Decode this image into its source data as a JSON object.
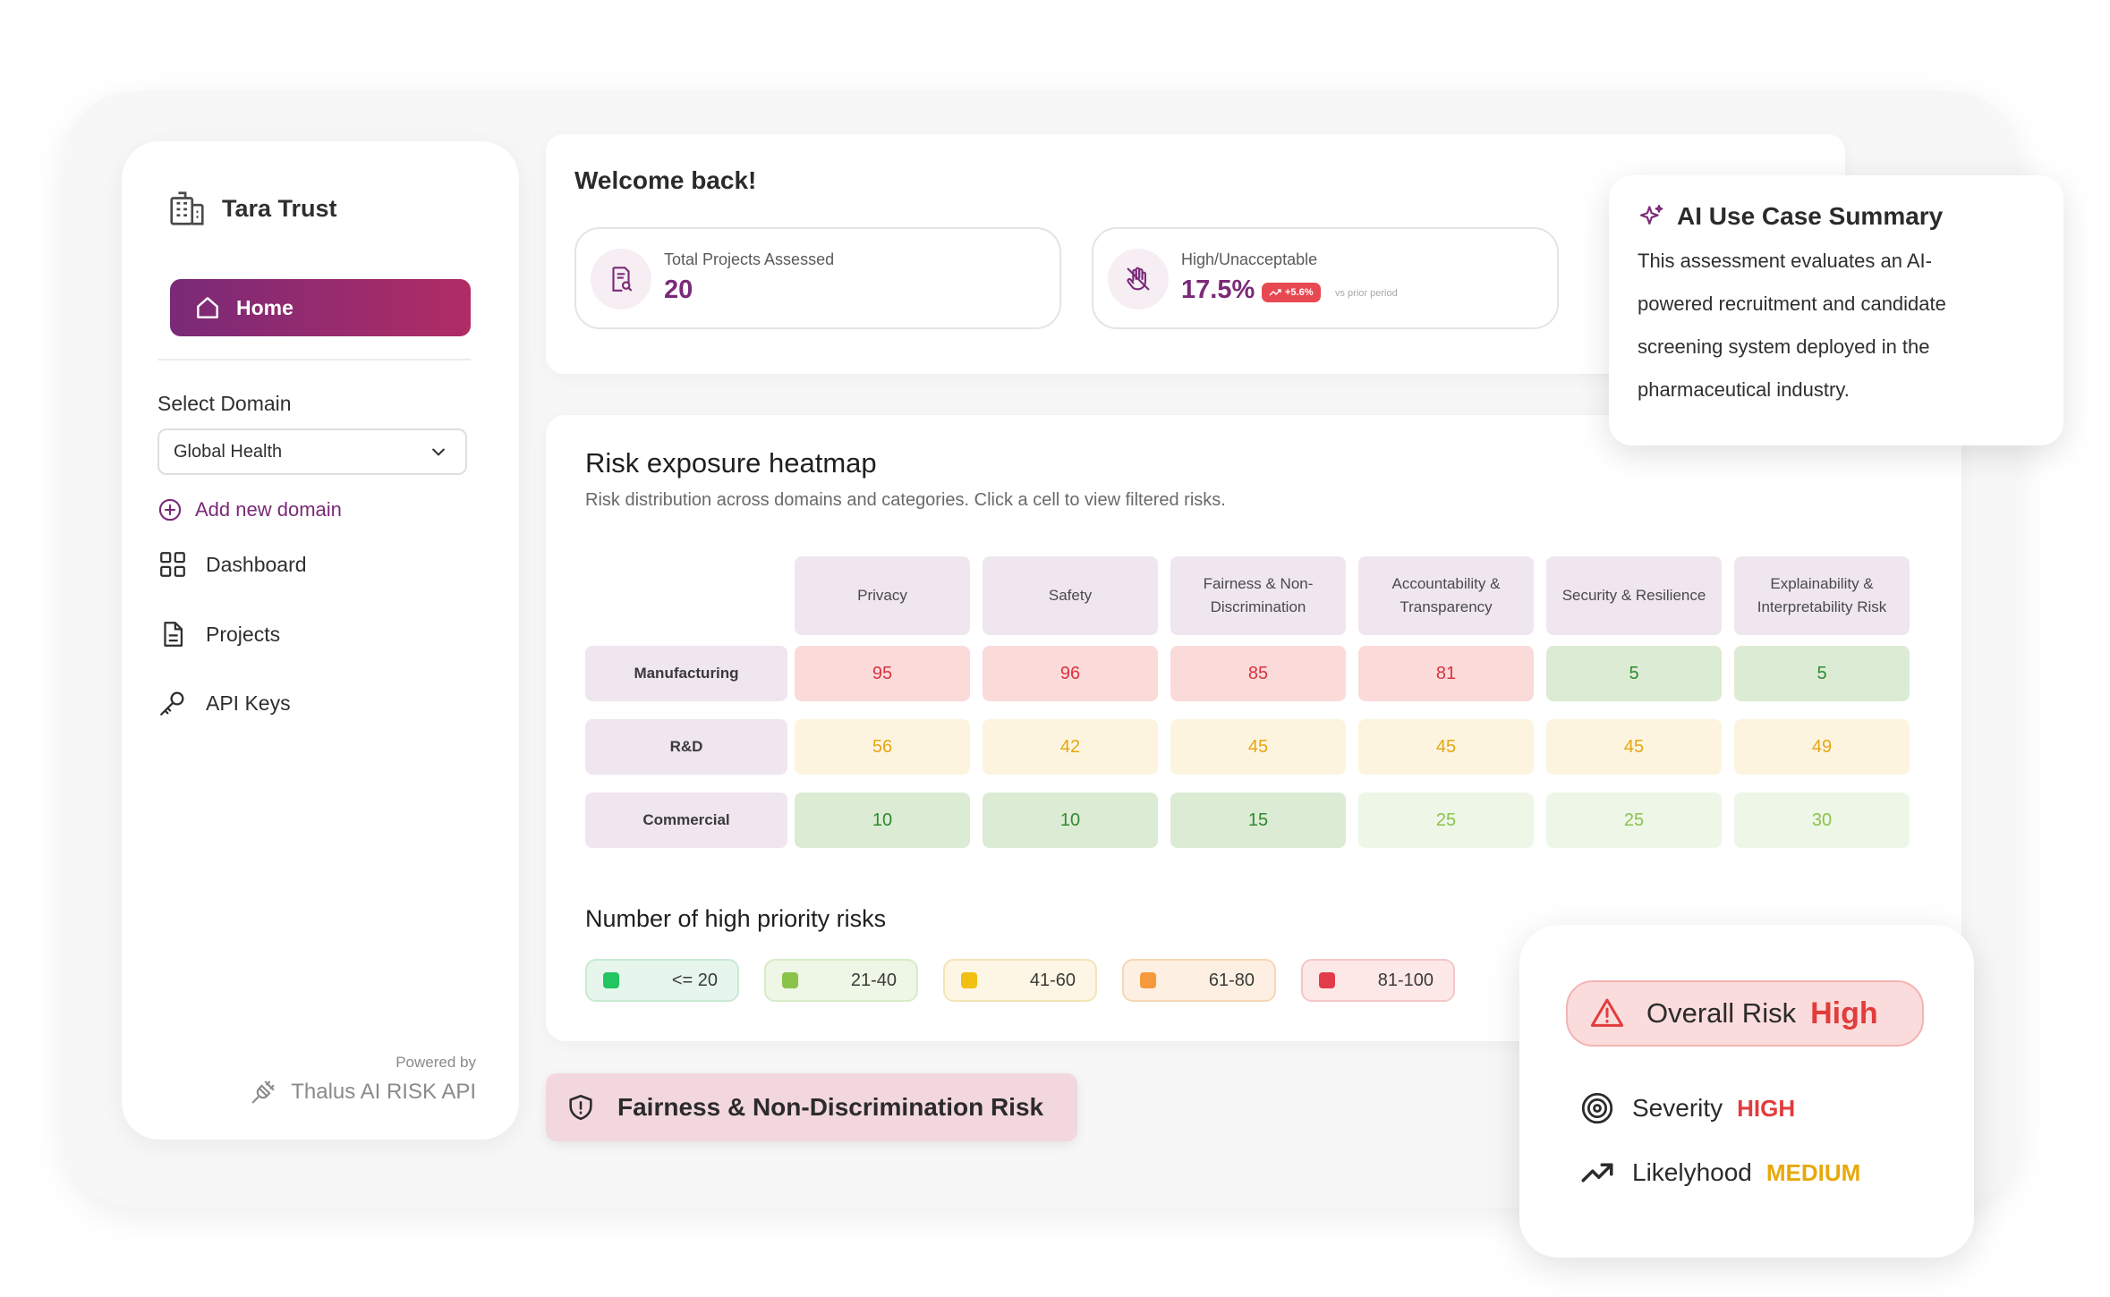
{
  "brand": {
    "name": "Tara Trust"
  },
  "nav": {
    "home": "Home",
    "select_domain_label": "Select Domain",
    "domain_selected": "Global Health",
    "add_domain": "Add new domain",
    "items": [
      "Dashboard",
      "Projects",
      "API Keys"
    ]
  },
  "powered": {
    "label": "Powered by",
    "name": "Thalus AI RISK API"
  },
  "welcome": {
    "title": "Welcome back!",
    "stats": [
      {
        "label": "Total Projects Assessed",
        "value": "20"
      },
      {
        "label": "High/Unacceptable",
        "value": "17.5%",
        "trend": "+5.6%",
        "trend_note": "vs prior period"
      }
    ]
  },
  "heatmap": {
    "title": "Risk exposure heatmap",
    "subtitle": "Risk distribution across domains and categories. Click a cell to view filtered risks.",
    "columns": [
      "Privacy",
      "Safety",
      "Fairness & Non-Discrimination",
      "Accountability & Transparency",
      "Security & Resilience",
      "Explainability & Interpretability Risk"
    ],
    "rows": [
      {
        "label": "Manufacturing",
        "values": [
          "95",
          "96",
          "85",
          "81",
          "5",
          "5"
        ]
      },
      {
        "label": "R&D",
        "values": [
          "56",
          "42",
          "45",
          "45",
          "45",
          "49"
        ]
      },
      {
        "label": "Commercial",
        "values": [
          "10",
          "10",
          "15",
          "25",
          "25",
          "30"
        ]
      }
    ]
  },
  "legend": {
    "title": "Number of high priority risks",
    "items": [
      {
        "label": "<= 20",
        "color": "#22c55e"
      },
      {
        "label": "21-40",
        "color": "#8bc34a"
      },
      {
        "label": "41-60",
        "color": "#f2c011"
      },
      {
        "label": "61-80",
        "color": "#f59a3c"
      },
      {
        "label": "81-100",
        "color": "#e23c4a"
      }
    ]
  },
  "fairness_badge": "Fairness & Non-Discrimination Risk",
  "ai_summary": {
    "title": "AI Use Case Summary",
    "lines": [
      "This assessment evaluates an AI-",
      "powered recruitment and candidate",
      "screening system deployed in the",
      "pharmaceutical industry."
    ]
  },
  "overall": {
    "label": "Overall Risk",
    "value": "High",
    "severity_label": "Severity",
    "severity_value": "HIGH",
    "likelihood_label": "Likelyhood",
    "likelihood_value": "MEDIUM"
  }
}
